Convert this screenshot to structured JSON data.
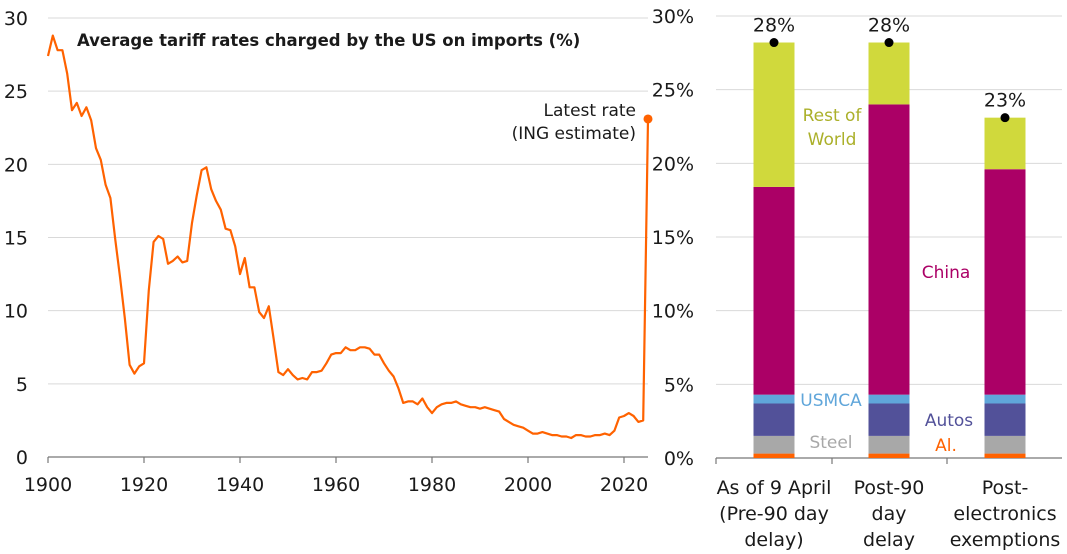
{
  "chart_data": [
    {
      "type": "line",
      "title": "Average tariff rates charged by the US on imports (%)",
      "xlabel": "",
      "ylabel": "",
      "xlim": [
        1900,
        2025
      ],
      "ylim": [
        0,
        30
      ],
      "x_ticks": [
        "1900",
        "1920",
        "1940",
        "1960",
        "1980",
        "2000",
        "2020"
      ],
      "y_ticks": [
        "0",
        "5",
        "10",
        "15",
        "20",
        "25",
        "30"
      ],
      "grid": true,
      "color": "#FF6200",
      "series": [
        {
          "name": "Average tariff rate",
          "x": [
            1900,
            1901,
            1902,
            1903,
            1904,
            1905,
            1906,
            1907,
            1908,
            1909,
            1910,
            1911,
            1912,
            1913,
            1914,
            1915,
            1916,
            1917,
            1918,
            1919,
            1920,
            1921,
            1922,
            1923,
            1924,
            1925,
            1926,
            1927,
            1928,
            1929,
            1930,
            1931,
            1932,
            1933,
            1934,
            1935,
            1936,
            1937,
            1938,
            1939,
            1940,
            1941,
            1942,
            1943,
            1944,
            1945,
            1946,
            1947,
            1948,
            1949,
            1950,
            1951,
            1952,
            1953,
            1954,
            1955,
            1956,
            1957,
            1958,
            1959,
            1960,
            1961,
            1962,
            1963,
            1964,
            1965,
            1966,
            1967,
            1968,
            1969,
            1970,
            1971,
            1972,
            1973,
            1974,
            1975,
            1976,
            1977,
            1978,
            1979,
            1980,
            1981,
            1982,
            1983,
            1984,
            1985,
            1986,
            1987,
            1988,
            1989,
            1990,
            1991,
            1992,
            1993,
            1994,
            1995,
            1996,
            1997,
            1998,
            1999,
            2000,
            2001,
            2002,
            2003,
            2004,
            2005,
            2006,
            2007,
            2008,
            2009,
            2010,
            2011,
            2012,
            2013,
            2014,
            2015,
            2016,
            2017,
            2018,
            2019,
            2020,
            2021,
            2022,
            2023,
            2024
          ],
          "values": [
            27.4,
            28.8,
            27.8,
            27.8,
            26.2,
            23.7,
            24.2,
            23.3,
            23.9,
            23.0,
            21.1,
            20.3,
            18.6,
            17.7,
            14.9,
            12.3,
            9.5,
            6.3,
            5.7,
            6.2,
            6.4,
            11.4,
            14.7,
            15.1,
            14.9,
            13.2,
            13.4,
            13.7,
            13.3,
            13.4,
            16.0,
            17.9,
            19.6,
            19.8,
            18.3,
            17.5,
            16.9,
            15.6,
            15.5,
            14.4,
            12.5,
            13.6,
            11.6,
            11.6,
            9.9,
            9.5,
            10.3,
            8.1,
            5.8,
            5.6,
            6.0,
            5.6,
            5.3,
            5.4,
            5.3,
            5.8,
            5.8,
            5.9,
            6.4,
            7.0,
            7.1,
            7.1,
            7.5,
            7.3,
            7.3,
            7.5,
            7.5,
            7.4,
            7.0,
            7.0,
            6.4,
            5.9,
            5.5,
            4.7,
            3.7,
            3.8,
            3.8,
            3.6,
            4.0,
            3.4,
            3.0,
            3.4,
            3.6,
            3.7,
            3.7,
            3.8,
            3.6,
            3.5,
            3.4,
            3.4,
            3.3,
            3.4,
            3.3,
            3.2,
            3.1,
            2.6,
            2.4,
            2.2,
            2.1,
            2.0,
            1.8,
            1.6,
            1.6,
            1.7,
            1.6,
            1.5,
            1.5,
            1.4,
            1.4,
            1.3,
            1.5,
            1.5,
            1.4,
            1.4,
            1.5,
            1.5,
            1.6,
            1.5,
            1.8,
            2.7,
            2.8,
            3.0,
            2.8,
            2.4,
            2.5
          ]
        },
        {
          "name": "Latest rate (ING estimate)",
          "x": [
            2025
          ],
          "values": [
            23.1
          ]
        }
      ],
      "annotations": [
        {
          "text_line1": "Latest rate",
          "text_line2": "(ING estimate)",
          "x": 2025,
          "y": 23.1
        }
      ]
    },
    {
      "type": "bar",
      "stacked": true,
      "ylim": [
        0,
        30
      ],
      "y_ticks": [
        "0%",
        "5%",
        "10%",
        "15%",
        "20%",
        "25%",
        "30%"
      ],
      "grid": true,
      "categories": [
        [
          "As of 9 April",
          "(Pre-90 day",
          "delay)"
        ],
        [
          "Post-90",
          "day",
          "delay"
        ],
        [
          "Post-",
          "electronics",
          "exemptions"
        ]
      ],
      "series": [
        {
          "name": "Al.",
          "color": "#FF6200",
          "values": [
            0.3,
            0.3,
            0.3
          ]
        },
        {
          "name": "Steel",
          "color": "#A8A8A8",
          "values": [
            1.2,
            1.2,
            1.2
          ]
        },
        {
          "name": "Autos",
          "color": "#525199",
          "values": [
            2.2,
            2.2,
            2.2
          ]
        },
        {
          "name": "USMCA",
          "color": "#60A6DA",
          "values": [
            0.6,
            0.6,
            0.6
          ]
        },
        {
          "name": "China",
          "color": "#AB0066",
          "values": [
            14.1,
            19.7,
            15.3
          ]
        },
        {
          "name": "Rest of World",
          "color": "#D0D93C",
          "values": [
            9.8,
            4.2,
            3.5
          ]
        }
      ],
      "totals": [
        28.2,
        28.2,
        23.1
      ],
      "total_labels": [
        "28%",
        "28%",
        "23%"
      ],
      "series_labels": {
        "rest_of_world_line1": "Rest of",
        "rest_of_world_line2": "World",
        "china": "China",
        "usmca": "USMCA",
        "autos": "Autos",
        "steel": "Steel",
        "al": "Al."
      },
      "label_colors": {
        "rest_of_world": "#ABB02A",
        "china": "#AB0066",
        "usmca": "#60A6DA",
        "autos": "#525199",
        "steel": "#A8A8A8",
        "al": "#FF6200"
      }
    }
  ]
}
